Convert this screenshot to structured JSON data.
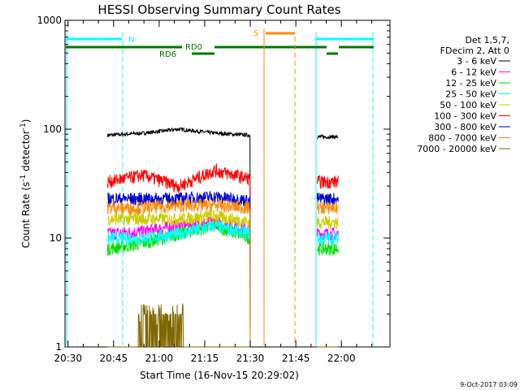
{
  "chart_data": {
    "type": "line",
    "title": "HESSI Observing Summary Count Rates",
    "xlabel": "Start Time (16-Nov-15 20:29:02)",
    "ylabel_main": "Count Rate (s",
    "ylabel_sup1": "-1",
    "ylabel_mid": " detector",
    "ylabel_sup2": "-1",
    "ylabel_end": ")",
    "y_scale": "log",
    "ylim": [
      1,
      1000
    ],
    "xlim_min": [
      1229,
      1336
    ],
    "x_ticks": [
      "20:30",
      "20:45",
      "21:00",
      "21:15",
      "21:30",
      "21:45",
      "22:00"
    ],
    "x_tick_values": [
      1230,
      1245,
      1260,
      1275,
      1290,
      1305,
      1320
    ],
    "y_ticks": [
      "1",
      "10",
      "100",
      "1000"
    ],
    "y_tick_values": [
      1,
      10,
      100,
      1000
    ],
    "legend_header": [
      "Det 1,5,7,",
      "FDecim 2, Att 0"
    ],
    "series": [
      {
        "name": "3 - 6 keV",
        "color": "#000000",
        "level": [
          88,
          92,
          100,
          92,
          88
        ],
        "post": 85
      },
      {
        "name": "6 - 12 keV",
        "color": "#ff00ff",
        "level": [
          11,
          11.5,
          13,
          14,
          12
        ],
        "post": 11
      },
      {
        "name": "12 - 25 keV",
        "color": "#00dd00",
        "level": [
          8,
          9,
          11,
          13,
          10
        ],
        "post": 8
      },
      {
        "name": "25 - 50 keV",
        "color": "#00ffff",
        "level": [
          10,
          10,
          11,
          13,
          11
        ],
        "post": 10
      },
      {
        "name": "50 - 100 keV",
        "color": "#cccc00",
        "level": [
          15,
          15,
          15,
          16,
          14
        ],
        "post": 14
      },
      {
        "name": "100 - 300 keV",
        "color": "#ff0000",
        "level": [
          33,
          38,
          30,
          42,
          35
        ],
        "post": 33
      },
      {
        "name": "300 - 800 keV",
        "color": "#0000cc",
        "level": [
          23,
          23,
          23,
          24,
          22
        ],
        "post": 23
      },
      {
        "name": "800 - 7000 keV",
        "color": "#ff8800",
        "level": [
          19,
          19,
          20,
          20,
          19
        ],
        "post": 19
      },
      {
        "name": "7000 - 20000 keV",
        "color": "#806600",
        "level": [
          1,
          1,
          1.8,
          1.8,
          1
        ],
        "post": 1
      }
    ],
    "segments": {
      "first_start": 1243,
      "first_end": 1290,
      "second_start": 1312,
      "second_end": 1319
    },
    "annotations": {
      "night_label": "N",
      "saa_label": "S",
      "rd0_label": "RD0",
      "rd6_label": "RD6"
    },
    "timestamp": "9-Oct-2017 03:09"
  }
}
